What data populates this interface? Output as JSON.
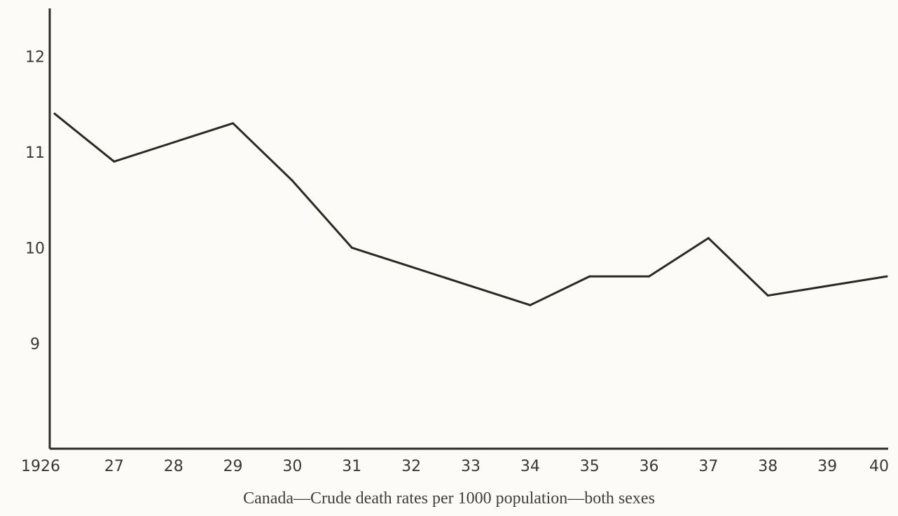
{
  "chart_data": {
    "type": "line",
    "title": "Canada—Crude death rates per 1000 population—both sexes",
    "xlabel": "",
    "ylabel": "",
    "x_tick_labels": [
      "1926",
      "27",
      "28",
      "29",
      "30",
      "31",
      "32",
      "33",
      "34",
      "35",
      "36",
      "37",
      "38",
      "39",
      "40"
    ],
    "x": [
      1926,
      1927,
      1928,
      1929,
      1930,
      1931,
      1932,
      1933,
      1934,
      1935,
      1936,
      1937,
      1938,
      1939,
      1940
    ],
    "y_ticks": [
      9,
      10,
      11,
      12
    ],
    "ylim": [
      7.9,
      12.5
    ],
    "xlim": [
      1926,
      1940
    ],
    "grid": false,
    "legend": "none",
    "series": [
      {
        "values": [
          11.4,
          10.9,
          11.1,
          11.3,
          10.7,
          10.0,
          9.8,
          9.6,
          9.4,
          9.7,
          9.7,
          10.1,
          9.5,
          9.6,
          9.7
        ]
      }
    ]
  }
}
